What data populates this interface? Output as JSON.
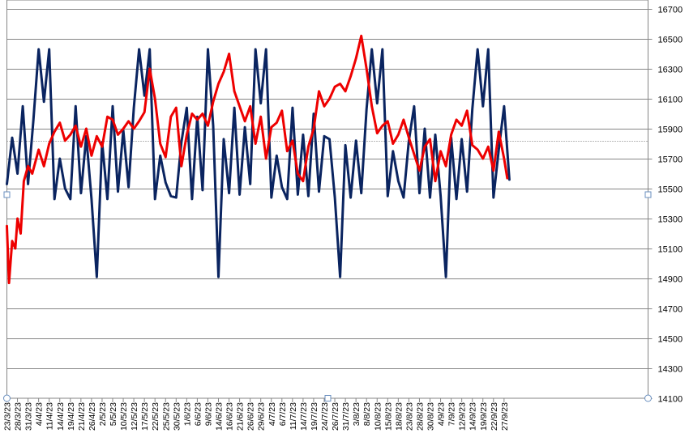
{
  "chart_data": {
    "type": "line",
    "title": "",
    "xlabel": "",
    "ylabel": "",
    "y_axis_position": "right",
    "ylim": [
      14100,
      16700
    ],
    "y_ticks": [
      14100,
      14300,
      14500,
      14700,
      14900,
      15100,
      15300,
      15500,
      15700,
      15900,
      16100,
      16300,
      16500,
      16700
    ],
    "reference_line": {
      "value": 15820,
      "style": "dotted"
    },
    "x_tick_labels": [
      "23/3/23",
      "28/3/23",
      "31/3/23",
      "4/4/23",
      "11/4/23",
      "14/4/23",
      "19/4/23",
      "21/4/23",
      "26/4/23",
      "2/5/23",
      "5/5/23",
      "10/5/23",
      "12/5/23",
      "17/5/23",
      "22/5/23",
      "25/5/23",
      "30/5/23",
      "1/6/23",
      "6/6/23",
      "9/6/23",
      "14/6/23",
      "16/6/23",
      "21/6/23",
      "26/6/23",
      "29/6/23",
      "4/7/23",
      "6/7/23",
      "11/7/23",
      "14/7/23",
      "19/7/23",
      "24/7/23",
      "26/7/23",
      "31/7/23",
      "3/8/23",
      "8/8/23",
      "10/8/23",
      "15/8/23",
      "18/8/23",
      "23/8/23",
      "28/8/23",
      "30/8/23",
      "4/9/23",
      "7/9/23",
      "12/9/23",
      "14/9/23",
      "19/9/23",
      "22/9/23",
      "27/9/23"
    ],
    "grid": true,
    "legend": "none",
    "series": [
      {
        "color": "#0a2460",
        "x_index": [
          0,
          0.5,
          1,
          1.5,
          2,
          2.5,
          3,
          3.5,
          4,
          4.5,
          5,
          5.5,
          6,
          6.5,
          7,
          7.5,
          8,
          8.5,
          9,
          9.5,
          10,
          10.5,
          11,
          11.5,
          12,
          12.5,
          13,
          13.5,
          14,
          14.5,
          15,
          15.5,
          16,
          16.5,
          17,
          17.5,
          18,
          18.5,
          19,
          19.5,
          20,
          20.5,
          21,
          21.5,
          22,
          22.5,
          23,
          23.5,
          24,
          24.5,
          25,
          25.5,
          26,
          26.5,
          27,
          27.5,
          28,
          28.5,
          29,
          29.5,
          30,
          30.5,
          31,
          31.5,
          32,
          32.5,
          33,
          33.5,
          34,
          34.5,
          35,
          35.5,
          36,
          36.5,
          37,
          37.5,
          38,
          38.5,
          39,
          39.5,
          40,
          40.5,
          41,
          41.5,
          42,
          42.5,
          43,
          43.5,
          44,
          44.5,
          45,
          45.5,
          46,
          46.5,
          47,
          47.5
        ],
        "values": [
          15530,
          15840,
          15600,
          16050,
          15530,
          15950,
          16430,
          16080,
          16430,
          15430,
          15700,
          15500,
          15430,
          16050,
          15470,
          15850,
          15430,
          14910,
          15810,
          15430,
          16050,
          15480,
          15890,
          15510,
          16040,
          16430,
          16120,
          16430,
          15430,
          15720,
          15540,
          15450,
          15440,
          15810,
          16040,
          15430,
          15980,
          15490,
          16430,
          15920,
          14910,
          15830,
          15470,
          16040,
          15460,
          15910,
          15530,
          16430,
          16070,
          16430,
          15440,
          15720,
          15510,
          15430,
          16040,
          15460,
          15860,
          15450,
          16000,
          15480,
          15850,
          15830,
          15440,
          14910,
          15790,
          15440,
          15820,
          15470,
          16030,
          16430,
          16070,
          16430,
          15450,
          15750,
          15550,
          15440,
          15820,
          16050,
          15470,
          15900,
          15440,
          15860,
          15450,
          14910,
          15840,
          15430,
          15830,
          15480,
          16030,
          16430,
          16050,
          16430,
          15440,
          15760,
          16050,
          15560
        ]
      },
      {
        "color": "#ee0000",
        "x_index": [
          0,
          0.2,
          0.5,
          0.8,
          1,
          1.3,
          1.6,
          2,
          2.4,
          3,
          3.5,
          4,
          4.5,
          5,
          5.5,
          6,
          6.5,
          7,
          7.5,
          8,
          8.5,
          9,
          9.5,
          10,
          10.5,
          11,
          11.5,
          12,
          12.5,
          13,
          13.5,
          14,
          14.5,
          15,
          15.5,
          16,
          16.5,
          17,
          17.5,
          18,
          18.5,
          19,
          19.5,
          20,
          20.5,
          21,
          21.5,
          22,
          22.5,
          23,
          23.5,
          24,
          24.5,
          25,
          25.5,
          26,
          26.5,
          27,
          27.5,
          28,
          28.5,
          29,
          29.5,
          30,
          30.5,
          31,
          31.5,
          32,
          32.5,
          33,
          33.5,
          34,
          34.5,
          35,
          35.5,
          36,
          36.5,
          37,
          37.5,
          38,
          38.5,
          39,
          39.5,
          40,
          40.5,
          41,
          41.5,
          42,
          42.5,
          43,
          43.5,
          44,
          44.5,
          45,
          45.5,
          46,
          46.5,
          47,
          47.3
        ],
        "values": [
          15250,
          14870,
          15150,
          15100,
          15300,
          15200,
          15550,
          15650,
          15600,
          15760,
          15650,
          15800,
          15880,
          15940,
          15820,
          15860,
          15920,
          15780,
          15900,
          15720,
          15850,
          15780,
          15980,
          15960,
          15860,
          15900,
          15950,
          15900,
          15950,
          16010,
          16300,
          16100,
          15800,
          15710,
          15980,
          16040,
          15650,
          15860,
          16000,
          15960,
          16000,
          15920,
          16080,
          16200,
          16280,
          16400,
          16150,
          16050,
          15950,
          16050,
          15800,
          15980,
          15700,
          15910,
          15940,
          16020,
          15750,
          15820,
          15600,
          15550,
          15780,
          15900,
          16150,
          16050,
          16100,
          16180,
          16200,
          16150,
          16250,
          16370,
          16520,
          16300,
          16050,
          15870,
          15920,
          15950,
          15800,
          15860,
          15960,
          15840,
          15730,
          15620,
          15780,
          15830,
          15550,
          15750,
          15650,
          15860,
          15960,
          15920,
          16020,
          15790,
          15760,
          15700,
          15780,
          15620,
          15880,
          15700,
          15570
        ]
      }
    ]
  }
}
